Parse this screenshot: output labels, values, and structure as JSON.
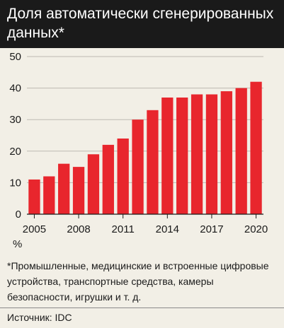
{
  "chart_data": {
    "type": "bar",
    "title": "Доля автоматически сгенерированных данных*",
    "ylabel": "%",
    "ylim": [
      0,
      50
    ],
    "yticks": [
      0,
      10,
      20,
      30,
      40,
      50
    ],
    "categories": [
      "2005",
      "2006",
      "2007",
      "2008",
      "2009",
      "2010",
      "2011",
      "2012",
      "2013",
      "2014",
      "2015",
      "2016",
      "2017",
      "2018",
      "2019",
      "2020"
    ],
    "xtick_labels": [
      "2005",
      "2008",
      "2011",
      "2014",
      "2017",
      "2020"
    ],
    "values": [
      11,
      12,
      16,
      15,
      19,
      22,
      24,
      30,
      33,
      37,
      37,
      38,
      38,
      39,
      40,
      42
    ],
    "grid": true,
    "bar_color": "#e8262d"
  },
  "footnote": "*Промышленные, медицинские и встроенные цифровые устройства, транспортные средства, камеры безопасности, игрушки и т. д.",
  "source": "Источник: IDC"
}
